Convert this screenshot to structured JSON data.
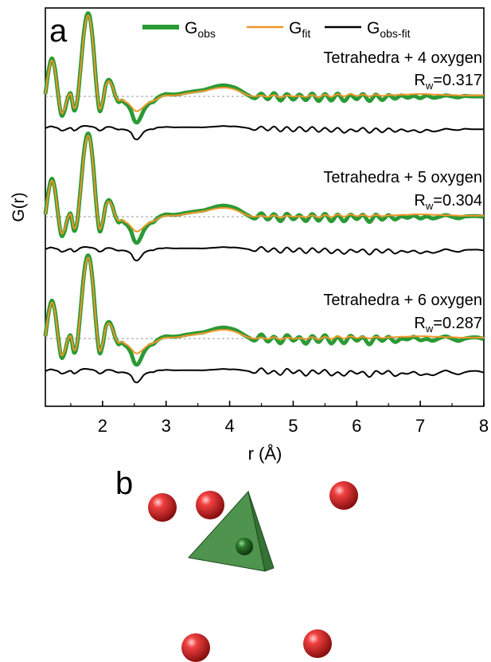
{
  "colors": {
    "obs": "#2a9a35",
    "fit": "#f0962a",
    "diff": "#000000",
    "oxygen": "#d91b1b",
    "tetrahedron": "#3f8a3f",
    "center_atom": "#1c5a1c"
  },
  "panel_a": {
    "letter": "a",
    "legend": [
      {
        "key": "obs",
        "main": "G",
        "sub": "obs"
      },
      {
        "key": "fit",
        "main": "G",
        "sub": "fit"
      },
      {
        "key": "diff",
        "main": "G",
        "sub": "obs-fit"
      }
    ]
  },
  "panel_b": {
    "letter": "b",
    "oxygen_count": 5,
    "tetrahedra": 1
  },
  "chart_data": {
    "type": "line",
    "xlabel": "r (Å)",
    "ylabel": "G(r)",
    "xlim": [
      1.1,
      8
    ],
    "xticks": [
      "2",
      "3",
      "4",
      "5",
      "6",
      "7",
      "8"
    ],
    "y_tick_labels": false,
    "grid": false,
    "legend_position": "top",
    "reference_line": "dashed zero baseline per panel",
    "panels": [
      {
        "label": "Tetrahedra + 4 oxygen",
        "rw_main": "R",
        "rw_sub": "w",
        "rw_value": "=0.317",
        "rw": 0.317
      },
      {
        "label": "Tetrahedra + 5 oxygen",
        "rw_main": "R",
        "rw_sub": "w",
        "rw_value": "=0.304",
        "rw": 0.304
      },
      {
        "label": "Tetrahedra + 6 oxygen",
        "rw_main": "R",
        "rw_sub": "w",
        "rw_value": "=0.287",
        "rw": 0.287
      }
    ],
    "profile_x": [
      1.1,
      1.15,
      1.2,
      1.25,
      1.3,
      1.35,
      1.4,
      1.45,
      1.5,
      1.55,
      1.6,
      1.65,
      1.7,
      1.75,
      1.8,
      1.85,
      1.9,
      1.95,
      2.0,
      2.05,
      2.1,
      2.15,
      2.2,
      2.25,
      2.3,
      2.35,
      2.4,
      2.45,
      2.5,
      2.55,
      2.6,
      2.65,
      2.7,
      2.75,
      2.8,
      2.85,
      2.9,
      2.95,
      3.0,
      3.1,
      3.2,
      3.3,
      3.4,
      3.5,
      3.6,
      3.7,
      3.8,
      3.9,
      4.0,
      4.1,
      4.2,
      4.3,
      4.4,
      4.5,
      4.6,
      4.7,
      4.8,
      4.9,
      5.0,
      5.1,
      5.2,
      5.3,
      5.4,
      5.5,
      5.6,
      5.7,
      5.8,
      5.9,
      6.0,
      6.1,
      6.2,
      6.3,
      6.4,
      6.5,
      6.6,
      6.7,
      6.8,
      6.9,
      7.0,
      7.1,
      7.2,
      7.3,
      7.4,
      7.5,
      7.6,
      7.7,
      7.8,
      7.9,
      8.0
    ],
    "series": [
      {
        "name": "Gobs",
        "values": [
          0.05,
          0.55,
          0.82,
          0.6,
          0.05,
          -0.4,
          -0.32,
          -0.05,
          0.06,
          -0.3,
          -0.12,
          0.55,
          1.3,
          1.75,
          1.72,
          1.15,
          0.3,
          -0.3,
          -0.15,
          0.25,
          0.36,
          0.25,
          0.02,
          -0.12,
          -0.09,
          -0.14,
          -0.2,
          -0.32,
          -0.52,
          -0.56,
          -0.45,
          -0.3,
          -0.2,
          -0.14,
          -0.12,
          -0.05,
          0.0,
          0.03,
          0.05,
          0.04,
          0.05,
          0.08,
          0.1,
          0.12,
          0.14,
          0.18,
          0.22,
          0.24,
          0.22,
          0.18,
          0.1,
          0.02,
          -0.04,
          0.06,
          -0.06,
          0.07,
          -0.09,
          0.05,
          -0.07,
          0.04,
          -0.08,
          0.06,
          -0.1,
          0.05,
          -0.09,
          0.06,
          -0.1,
          0.03,
          -0.06,
          0.05,
          -0.1,
          0.04,
          -0.08,
          0.03,
          -0.05,
          0.02,
          -0.03,
          0.01,
          -0.04,
          0.02,
          -0.03,
          -0.01,
          0.02,
          0.0,
          -0.02,
          0.01,
          0.0,
          0.0,
          0.0
        ]
      },
      {
        "name": "Gfit",
        "values": [
          0.05,
          0.52,
          0.78,
          0.58,
          0.05,
          -0.35,
          -0.28,
          -0.04,
          0.05,
          -0.25,
          -0.1,
          0.52,
          1.25,
          1.7,
          1.68,
          1.12,
          0.3,
          -0.25,
          -0.12,
          0.23,
          0.33,
          0.23,
          0.03,
          -0.09,
          -0.07,
          -0.11,
          -0.15,
          -0.22,
          -0.3,
          -0.32,
          -0.28,
          -0.22,
          -0.16,
          -0.12,
          -0.1,
          -0.06,
          -0.02,
          0.01,
          0.02,
          0.02,
          0.03,
          0.06,
          0.08,
          0.1,
          0.12,
          0.15,
          0.18,
          0.19,
          0.18,
          0.14,
          0.08,
          0.02,
          0.0,
          0.02,
          -0.01,
          0.03,
          -0.02,
          0.02,
          0.0,
          0.01,
          -0.01,
          0.03,
          -0.02,
          0.04,
          -0.01,
          0.05,
          0.0,
          0.05,
          0.01,
          0.04,
          0.0,
          0.04,
          0.01,
          0.03,
          0.03,
          0.04,
          0.04,
          0.05,
          0.05,
          0.05,
          0.04,
          0.04,
          0.03,
          0.03,
          0.02,
          0.02,
          0.02,
          0.02,
          0.02
        ]
      },
      {
        "name": "Gobs-fit",
        "values": [
          0.0,
          0.03,
          0.04,
          0.02,
          0.0,
          -0.05,
          -0.04,
          -0.01,
          0.01,
          -0.05,
          -0.02,
          0.03,
          0.05,
          0.05,
          0.04,
          0.03,
          0.0,
          -0.05,
          -0.03,
          0.02,
          0.03,
          0.02,
          -0.01,
          -0.03,
          -0.02,
          -0.03,
          -0.05,
          -0.1,
          -0.22,
          -0.24,
          -0.17,
          -0.08,
          -0.04,
          -0.02,
          -0.02,
          0.01,
          0.02,
          0.02,
          0.03,
          0.02,
          0.02,
          0.02,
          0.02,
          0.02,
          0.02,
          0.03,
          0.04,
          0.05,
          0.04,
          0.04,
          0.02,
          0.0,
          -0.04,
          0.04,
          -0.05,
          0.04,
          -0.07,
          0.03,
          -0.07,
          0.03,
          -0.07,
          0.03,
          -0.08,
          0.01,
          -0.08,
          0.01,
          -0.1,
          -0.02,
          -0.07,
          0.01,
          -0.1,
          0.0,
          -0.09,
          0.0,
          -0.08,
          -0.02,
          -0.07,
          -0.04,
          -0.09,
          -0.03,
          -0.07,
          -0.05,
          -0.01,
          -0.03,
          -0.04,
          -0.01,
          -0.02,
          -0.02,
          -0.02
        ]
      }
    ]
  }
}
